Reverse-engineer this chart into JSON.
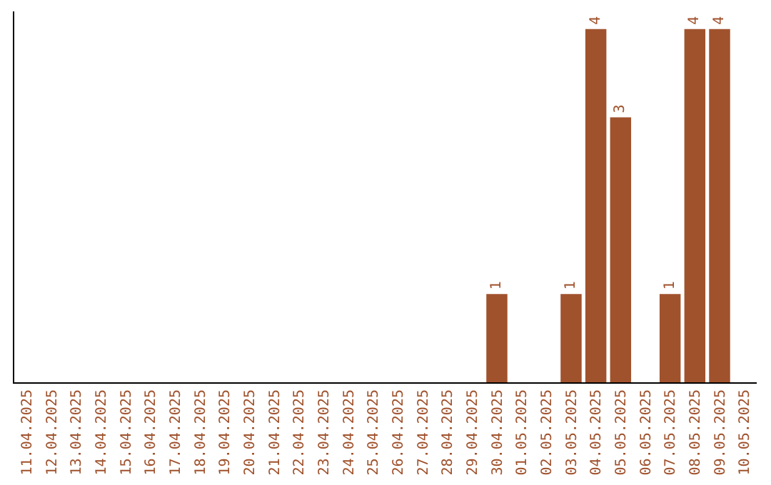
{
  "chart_data": {
    "type": "bar",
    "categories": [
      "11.04.2025",
      "12.04.2025",
      "13.04.2025",
      "14.04.2025",
      "15.04.2025",
      "16.04.2025",
      "17.04.2025",
      "18.04.2025",
      "19.04.2025",
      "20.04.2025",
      "21.04.2025",
      "22.04.2025",
      "23.04.2025",
      "24.04.2025",
      "25.04.2025",
      "26.04.2025",
      "27.04.2025",
      "28.04.2025",
      "29.04.2025",
      "30.04.2025",
      "01.05.2025",
      "02.05.2025",
      "03.05.2025",
      "04.05.2025",
      "05.05.2025",
      "06.05.2025",
      "07.05.2025",
      "08.05.2025",
      "09.05.2025",
      "10.05.2025"
    ],
    "values": [
      null,
      null,
      null,
      null,
      null,
      null,
      null,
      null,
      null,
      null,
      null,
      null,
      null,
      null,
      null,
      null,
      null,
      null,
      null,
      1,
      null,
      null,
      1,
      4,
      3,
      null,
      1,
      4,
      4,
      null
    ],
    "data_labels": true,
    "color": "#a0522d",
    "ylim": [
      0,
      4.2
    ],
    "tick_labels": "x",
    "grid": false
  }
}
